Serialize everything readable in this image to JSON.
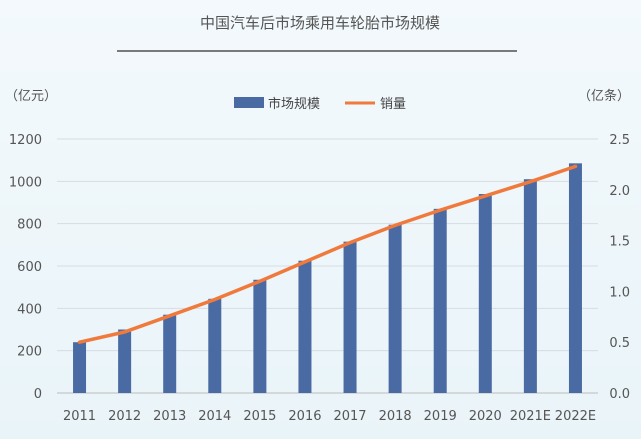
{
  "chart_data": {
    "type": "bar+line",
    "title": "中国汽车后市场乘用车轮胎市场规模",
    "categories": [
      "2011",
      "2012",
      "2013",
      "2014",
      "2015",
      "2016",
      "2017",
      "2018",
      "2019",
      "2020",
      "2021E",
      "2022E"
    ],
    "left_axis": {
      "unit_label": "（亿元）",
      "ylim": [
        0,
        1200
      ],
      "ticks": [
        0,
        200,
        400,
        600,
        800,
        1000,
        1200
      ]
    },
    "right_axis": {
      "unit_label": "（亿条）",
      "ylim": [
        0,
        2.5
      ],
      "ticks": [
        "0.0",
        "0.5",
        "1.0",
        "1.5",
        "2.0",
        "2.5"
      ]
    },
    "grid": true,
    "legend_position": "top-center",
    "series": [
      {
        "name": "市场规模",
        "type": "bar",
        "axis": "left",
        "color": "#4a6aa3",
        "values": [
          240,
          300,
          370,
          445,
          535,
          625,
          715,
          795,
          870,
          940,
          1010,
          1085
        ]
      },
      {
        "name": "销量",
        "type": "line",
        "axis": "right",
        "color": "#f07a3c",
        "values": [
          0.5,
          0.6,
          0.76,
          0.92,
          1.1,
          1.29,
          1.48,
          1.65,
          1.8,
          1.94,
          2.08,
          2.23
        ]
      }
    ]
  }
}
